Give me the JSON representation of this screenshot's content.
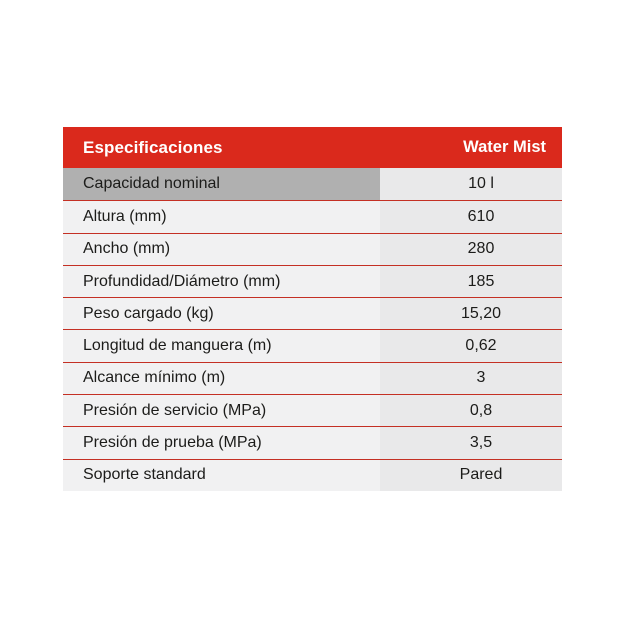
{
  "table": {
    "header": {
      "title": "Especificaciones",
      "column": "Water Mist"
    },
    "rows": [
      {
        "label": "Capacidad nominal",
        "value": "10 l"
      },
      {
        "label": "Altura (mm)",
        "value": "610"
      },
      {
        "label": "Ancho (mm)",
        "value": "280"
      },
      {
        "label": "Profundidad/Diámetro (mm)",
        "value": "185"
      },
      {
        "label": "Peso cargado (kg)",
        "value": "15,20"
      },
      {
        "label": "Longitud de manguera (m)",
        "value": "0,62"
      },
      {
        "label": "Alcance mínimo (m)",
        "value": "3"
      },
      {
        "label": "Presión de servicio (MPa)",
        "value": "0,8"
      },
      {
        "label": "Presión de prueba (MPa)",
        "value": "3,5"
      },
      {
        "label": "Soporte standard",
        "value": "Pared"
      }
    ]
  },
  "colors": {
    "header_red": "#DA291C",
    "separator_red": "#C43024",
    "label_bg": "#F1F1F2",
    "value_bg": "#E9E9EA",
    "highlight_label_bg": "#B0B0B0",
    "text": "#1C1C1A"
  }
}
